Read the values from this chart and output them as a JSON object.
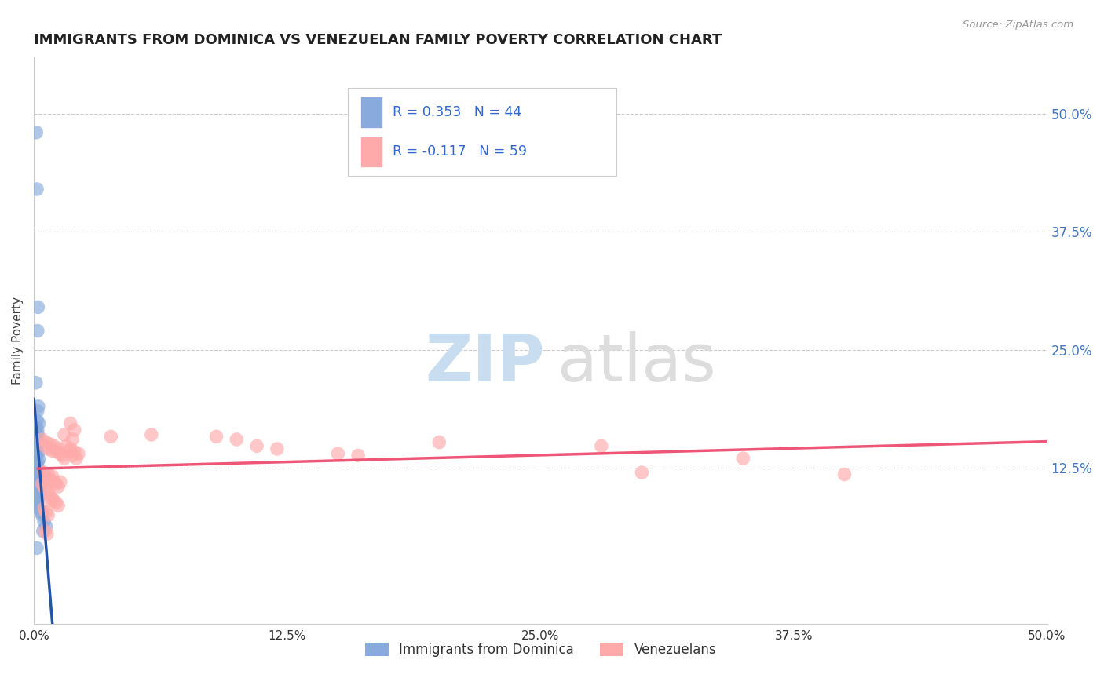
{
  "title": "IMMIGRANTS FROM DOMINICA VS VENEZUELAN FAMILY POVERTY CORRELATION CHART",
  "source": "Source: ZipAtlas.com",
  "ylabel": "Family Poverty",
  "ytick_labels": [
    "12.5%",
    "25.0%",
    "37.5%",
    "50.0%"
  ],
  "ytick_values": [
    0.125,
    0.25,
    0.375,
    0.5
  ],
  "xlim": [
    0.0,
    0.5
  ],
  "ylim": [
    -0.04,
    0.56
  ],
  "legend_label1": "Immigrants from Dominica",
  "legend_label2": "Venezuelans",
  "r1": "R = 0.353",
  "n1": "N = 44",
  "r2": "R = -0.117",
  "n2": "N = 59",
  "blue_color": "#88AADD",
  "pink_color": "#FFAAAA",
  "blue_line_color": "#2255AA",
  "pink_line_color": "#EE5577",
  "blue_dots": [
    [
      0.0012,
      0.48
    ],
    [
      0.0015,
      0.42
    ],
    [
      0.002,
      0.295
    ],
    [
      0.0018,
      0.27
    ],
    [
      0.001,
      0.215
    ],
    [
      0.0022,
      0.19
    ],
    [
      0.0018,
      0.185
    ],
    [
      0.0015,
      0.175
    ],
    [
      0.0025,
      0.172
    ],
    [
      0.0012,
      0.168
    ],
    [
      0.0018,
      0.165
    ],
    [
      0.002,
      0.16
    ],
    [
      0.0015,
      0.157
    ],
    [
      0.001,
      0.154
    ],
    [
      0.0022,
      0.151
    ],
    [
      0.0018,
      0.148
    ],
    [
      0.0012,
      0.145
    ],
    [
      0.0015,
      0.142
    ],
    [
      0.002,
      0.14
    ],
    [
      0.001,
      0.137
    ],
    [
      0.0025,
      0.134
    ],
    [
      0.0018,
      0.131
    ],
    [
      0.0012,
      0.128
    ],
    [
      0.002,
      0.125
    ],
    [
      0.0015,
      0.122
    ],
    [
      0.001,
      0.119
    ],
    [
      0.0022,
      0.116
    ],
    [
      0.0018,
      0.113
    ],
    [
      0.0012,
      0.11
    ],
    [
      0.002,
      0.107
    ],
    [
      0.0015,
      0.104
    ],
    [
      0.0025,
      0.101
    ],
    [
      0.0018,
      0.098
    ],
    [
      0.001,
      0.095
    ],
    [
      0.0022,
      0.092
    ],
    [
      0.0015,
      0.089
    ],
    [
      0.0012,
      0.086
    ],
    [
      0.002,
      0.083
    ],
    [
      0.0035,
      0.078
    ],
    [
      0.004,
      0.075
    ],
    [
      0.005,
      0.068
    ],
    [
      0.006,
      0.063
    ],
    [
      0.0045,
      0.058
    ],
    [
      0.0015,
      0.04
    ]
  ],
  "pink_dots": [
    [
      0.004,
      0.155
    ],
    [
      0.0055,
      0.148
    ],
    [
      0.006,
      0.152
    ],
    [
      0.007,
      0.145
    ],
    [
      0.008,
      0.15
    ],
    [
      0.009,
      0.143
    ],
    [
      0.01,
      0.148
    ],
    [
      0.011,
      0.142
    ],
    [
      0.012,
      0.145
    ],
    [
      0.013,
      0.14
    ],
    [
      0.014,
      0.138
    ],
    [
      0.015,
      0.135
    ],
    [
      0.016,
      0.148
    ],
    [
      0.017,
      0.142
    ],
    [
      0.018,
      0.145
    ],
    [
      0.019,
      0.138
    ],
    [
      0.02,
      0.142
    ],
    [
      0.021,
      0.135
    ],
    [
      0.022,
      0.14
    ],
    [
      0.005,
      0.12
    ],
    [
      0.006,
      0.115
    ],
    [
      0.007,
      0.118
    ],
    [
      0.008,
      0.112
    ],
    [
      0.009,
      0.116
    ],
    [
      0.01,
      0.11
    ],
    [
      0.011,
      0.108
    ],
    [
      0.012,
      0.105
    ],
    [
      0.013,
      0.11
    ],
    [
      0.004,
      0.108
    ],
    [
      0.005,
      0.105
    ],
    [
      0.006,
      0.102
    ],
    [
      0.007,
      0.098
    ],
    [
      0.008,
      0.095
    ],
    [
      0.009,
      0.092
    ],
    [
      0.01,
      0.09
    ],
    [
      0.011,
      0.088
    ],
    [
      0.012,
      0.085
    ],
    [
      0.005,
      0.082
    ],
    [
      0.006,
      0.078
    ],
    [
      0.007,
      0.075
    ],
    [
      0.0055,
      0.058
    ],
    [
      0.0065,
      0.055
    ],
    [
      0.015,
      0.16
    ],
    [
      0.018,
      0.172
    ],
    [
      0.019,
      0.155
    ],
    [
      0.02,
      0.165
    ],
    [
      0.038,
      0.158
    ],
    [
      0.058,
      0.16
    ],
    [
      0.09,
      0.158
    ],
    [
      0.1,
      0.155
    ],
    [
      0.11,
      0.148
    ],
    [
      0.12,
      0.145
    ],
    [
      0.15,
      0.14
    ],
    [
      0.16,
      0.138
    ],
    [
      0.2,
      0.152
    ],
    [
      0.28,
      0.148
    ],
    [
      0.3,
      0.12
    ],
    [
      0.35,
      0.135
    ],
    [
      0.4,
      0.118
    ]
  ]
}
